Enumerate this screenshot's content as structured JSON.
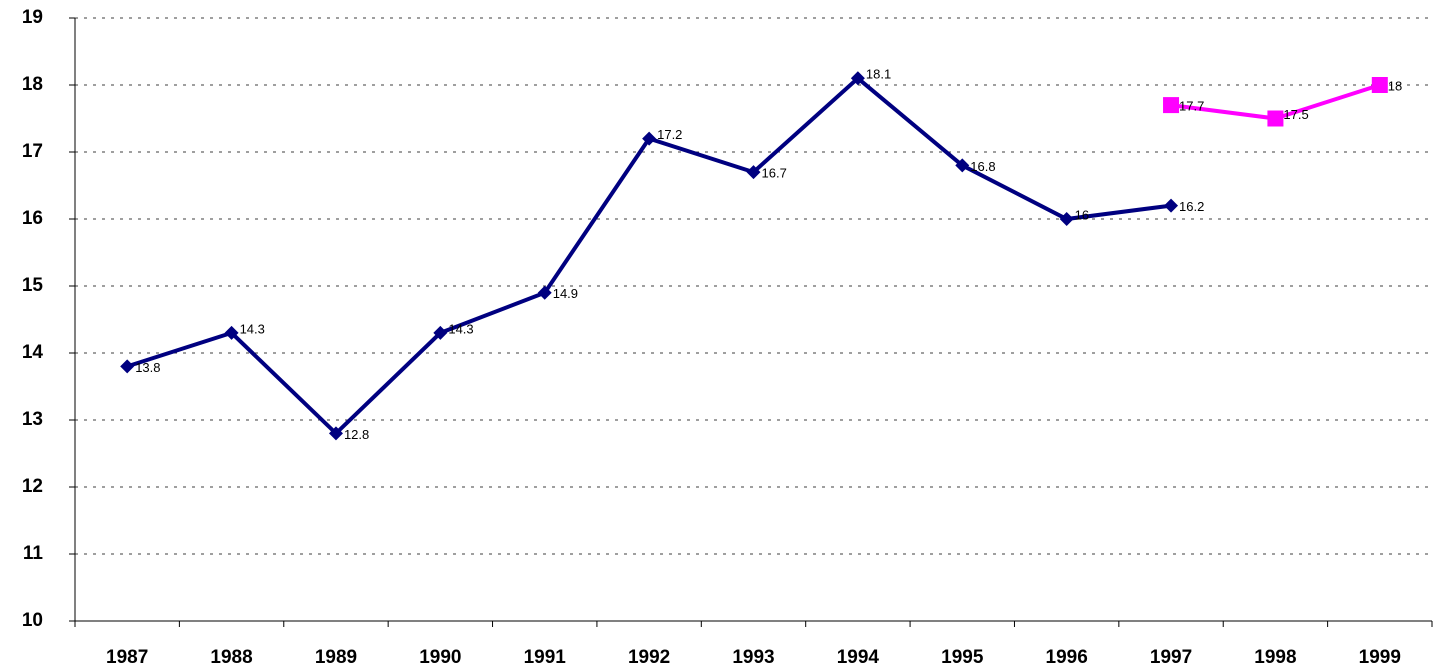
{
  "chart_data": {
    "type": "line",
    "categories": [
      "1987",
      "1988",
      "1989",
      "1990",
      "1991",
      "1992",
      "1993",
      "1994",
      "1995",
      "1996",
      "1997",
      "1998",
      "1999"
    ],
    "series": [
      {
        "color": "#000080",
        "marker": "diamond",
        "values": [
          13.8,
          14.3,
          12.8,
          14.3,
          14.9,
          17.2,
          16.7,
          18.1,
          16.8,
          16,
          16.2,
          null,
          null
        ]
      },
      {
        "color": "#ff00ff",
        "marker": "square",
        "values": [
          null,
          null,
          null,
          null,
          null,
          null,
          null,
          null,
          null,
          null,
          17.7,
          17.5,
          18
        ]
      }
    ],
    "ylim": [
      10,
      19
    ],
    "yticks": [
      10,
      11,
      12,
      13,
      14,
      15,
      16,
      17,
      18,
      19
    ],
    "grid": true,
    "data_labels": true
  }
}
